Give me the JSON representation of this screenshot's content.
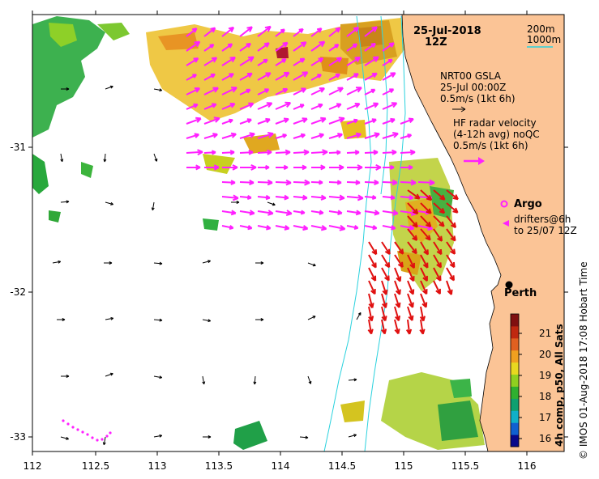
{
  "title": {
    "date": "25-Jul-2018",
    "hour": "12Z"
  },
  "scale_key": {
    "shallow": "200m",
    "deep": "1000m"
  },
  "legend": {
    "gsla_line1": "NRT00 GSLA",
    "gsla_line2": "25-Jul 00:00Z",
    "gsla_line3": "0.5m/s (1kt 6h)",
    "radar_line1": "HF radar velocity",
    "radar_line2": "(4-12h avg) noQC",
    "radar_line3": "0.5m/s (1kt 6h)",
    "argo": "Argo",
    "drifters_line1": "drifters@6h",
    "drifters_line2": "to 25/07 12Z"
  },
  "city": {
    "name": "Perth"
  },
  "colorbar": {
    "label": "4h comp, p50, All Sats",
    "ticks": [
      "21",
      "20",
      "19",
      "18",
      "17",
      "16"
    ],
    "colors": [
      "#08088a",
      "#1060d0",
      "#10b0c8",
      "#10a070",
      "#30b030",
      "#90d020",
      "#e8d820",
      "#f0a020",
      "#e06020",
      "#c02810",
      "#801010"
    ]
  },
  "side_credit": "© IMOS 01-Aug-2018 17:08 Hobart Time",
  "axes": {
    "x_ticks": [
      "112",
      "112.5",
      "113",
      "113.5",
      "114",
      "114.5",
      "115",
      "115.5",
      "116"
    ],
    "y_ticks": [
      "-31",
      "-32",
      "-33"
    ]
  },
  "colors": {
    "land": "#fbc496",
    "isobath": "#2bd2de",
    "radar_arrow": "#ff20ff",
    "radar_fast": "#e01010",
    "gsla_arrow": "#000000"
  }
}
